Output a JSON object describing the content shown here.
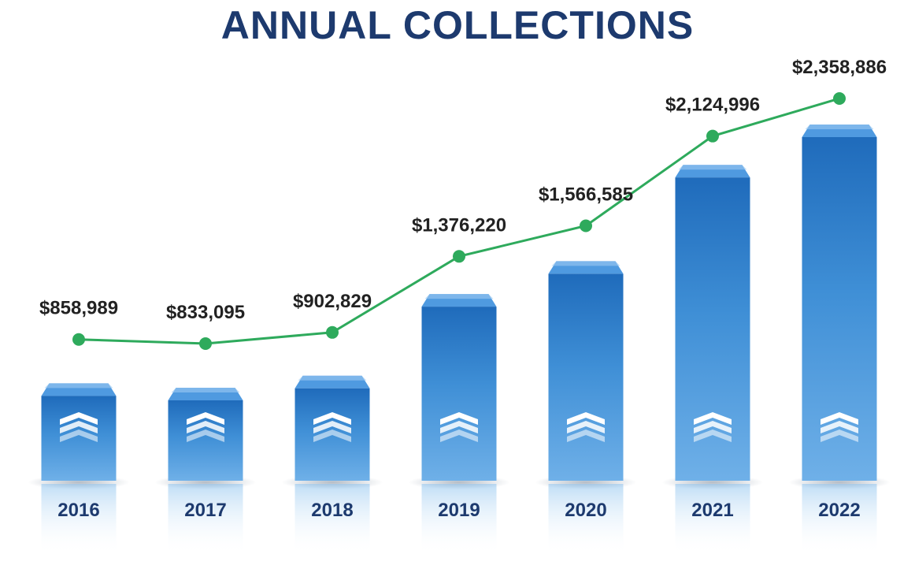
{
  "chart_data": {
    "type": "bar",
    "title": "ANNUAL COLLECTIONS",
    "categories": [
      "2016",
      "2017",
      "2018",
      "2019",
      "2020",
      "2021",
      "2022"
    ],
    "series": [
      {
        "values": [
          858989,
          833095,
          902829,
          1376220,
          1566585,
          2124996,
          2358886
        ],
        "labels": [
          "$858,989",
          "$833,095",
          "$902,829",
          "$1,376,220",
          "$1,566,585",
          "$2,124,996",
          "$2,358,886"
        ]
      }
    ],
    "overlay_line": true,
    "colors": {
      "bar": "#3a8bd4",
      "bar_top": "#2a6fbf",
      "line": "#2eaa5c",
      "title": "#1d3a6e",
      "year_label": "#1d3a6e",
      "value_label": "#222222"
    },
    "bar_icon": "chevron-up-stack-icon",
    "grid": false
  }
}
